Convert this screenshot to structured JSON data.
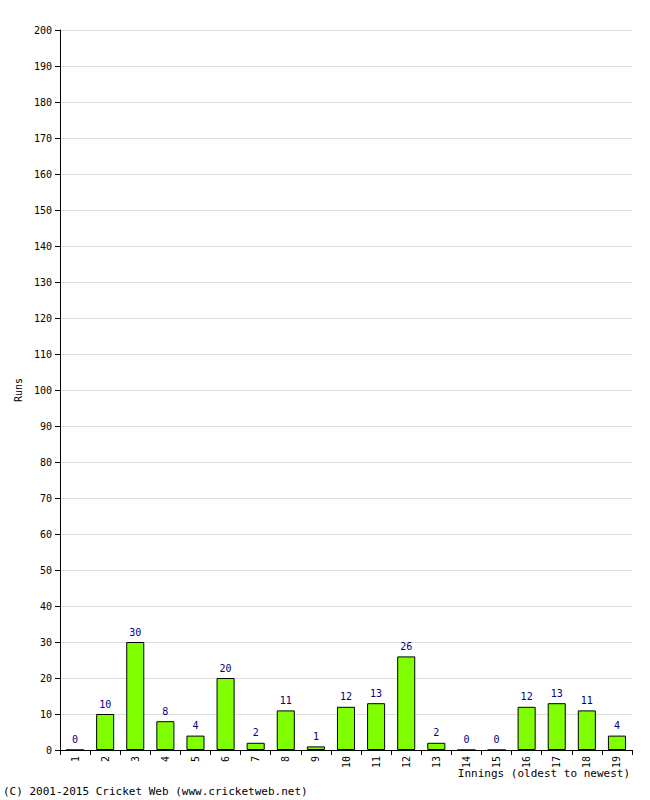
{
  "chart_data": {
    "type": "bar",
    "categories": [
      "1",
      "2",
      "3",
      "4",
      "5",
      "6",
      "7",
      "8",
      "9",
      "10",
      "11",
      "12",
      "13",
      "14",
      "15",
      "16",
      "17",
      "18",
      "19"
    ],
    "values": [
      0,
      10,
      30,
      8,
      4,
      20,
      2,
      11,
      1,
      12,
      13,
      26,
      2,
      0,
      0,
      12,
      13,
      11,
      4
    ],
    "color": "#80ff00",
    "ylabel": "Runs",
    "xlabel": "Innings (oldest to newest)",
    "annotations": [
      "(C) 2001-2015 Cricket Web (www.cricketweb.net)"
    ],
    "ylim": [
      0,
      200
    ],
    "yticks": [
      0,
      10,
      20,
      30,
      40,
      50,
      60,
      70,
      80,
      90,
      100,
      110,
      120,
      130,
      140,
      150,
      160,
      170,
      180,
      190,
      200
    ],
    "grid": true,
    "data_labels": true
  }
}
